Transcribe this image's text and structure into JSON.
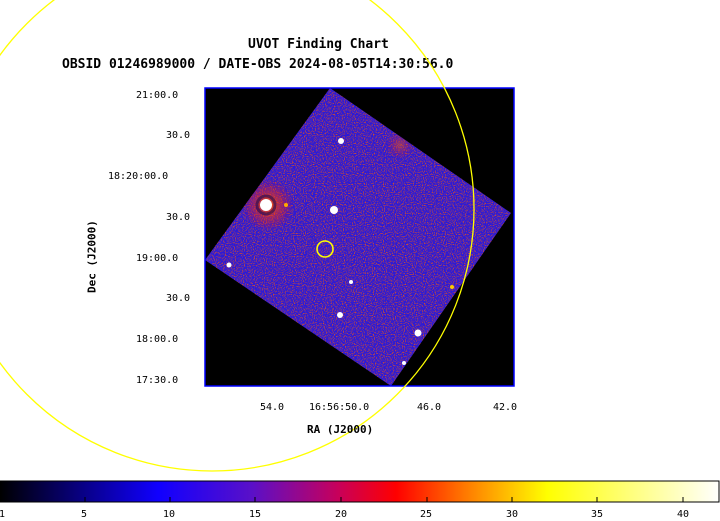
{
  "header": {
    "title": "UVOT Finding Chart",
    "subtitle": "OBSID 01246989000 / DATE-OBS 2024-08-05T14:30:56.0"
  },
  "axes": {
    "ylabel": "Dec (J2000)",
    "xlabel": "RA (J2000)",
    "yticks": [
      "21:00.0",
      "30.0",
      "18:20:00.0",
      "30.0",
      "19:00.0",
      "30.0",
      "18:00.0",
      "17:30.0"
    ],
    "xticks": [
      "54.0",
      "16:56:50.0",
      "46.0",
      "42.0"
    ]
  },
  "colorbar": {
    "ticks": [
      "1",
      "5",
      "10",
      "15",
      "20",
      "25",
      "30",
      "35",
      "40"
    ],
    "range": [
      1,
      42
    ],
    "colors": [
      "#000000",
      "#0a00ff",
      "#ff0000",
      "#ffcc00",
      "#ffff00",
      "#ffffff"
    ]
  },
  "overlays": {
    "large_circle_color": "#ffff00",
    "small_circle_color": "#ffff00"
  }
}
